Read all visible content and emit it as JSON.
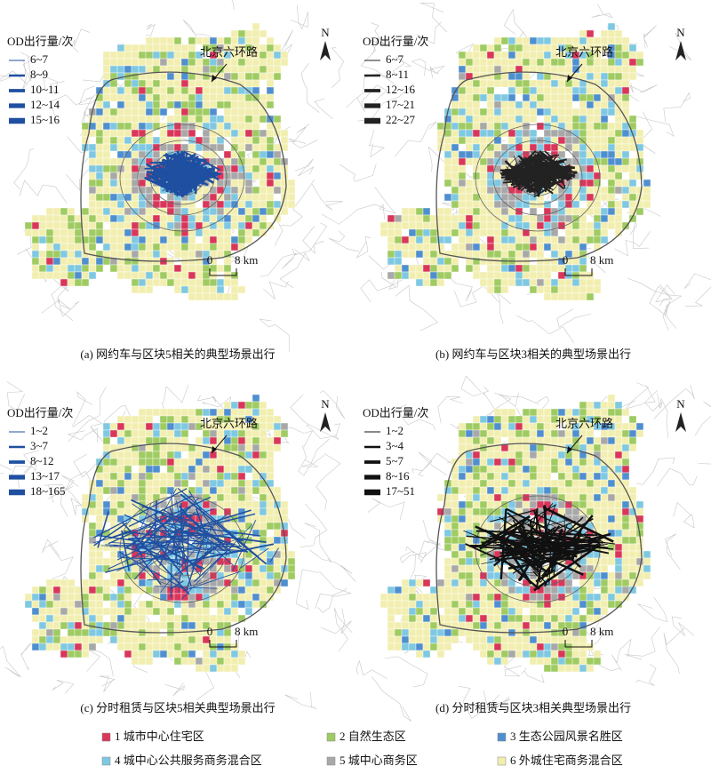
{
  "panels": [
    {
      "caption": "(a) 网约车与区块5相关的典型场景出行",
      "legend_title": "OD出行量/次",
      "legend_items": [
        "6~7",
        "8~9",
        "10~11",
        "12~14",
        "15~16"
      ],
      "line_color": "#1f4fa0",
      "ring_label": "北京六环路",
      "scale_labels": [
        "0",
        "8 km"
      ],
      "north": "N"
    },
    {
      "caption": "(b) 网约车与区块3相关的典型场景出行",
      "legend_title": "OD出行量/次",
      "legend_items": [
        "6~7",
        "8~11",
        "12~16",
        "17~21",
        "22~27"
      ],
      "line_color": "#222222",
      "ring_label": "北京六环路",
      "scale_labels": [
        "0",
        "8 km"
      ],
      "north": "N"
    },
    {
      "caption": "(c) 分时租赁与区块5相关典型场景出行",
      "legend_title": "OD出行量/次",
      "legend_items": [
        "1~2",
        "3~7",
        "8~12",
        "13~17",
        "18~165"
      ],
      "line_color": "#1f4fa0",
      "ring_label": "北京六环路",
      "scale_labels": [
        "0",
        "8 km"
      ],
      "north": "N"
    },
    {
      "caption": "(d) 分时租赁与区块3相关典型场景出行",
      "legend_title": "OD出行量/次",
      "legend_items": [
        "1~2",
        "3~4",
        "5~7",
        "8~16",
        "17~51"
      ],
      "line_color": "#111111",
      "ring_label": "北京六环路",
      "scale_labels": [
        "0",
        "8 km"
      ],
      "north": "N"
    }
  ],
  "zone_legend": [
    {
      "label": "1 城市中心住宅区",
      "color": "#d9365a"
    },
    {
      "label": "2 自然生态区",
      "color": "#9fcb62"
    },
    {
      "label": "3 生态公园风景名胜区",
      "color": "#4f8fcf"
    },
    {
      "label": "4 城中心公共服务商务混合区",
      "color": "#7fc8e2"
    },
    {
      "label": "5 城中心商务区",
      "color": "#a8a8a8"
    },
    {
      "label": "6 外城住宅商务混合区",
      "color": "#f2eeb0"
    }
  ]
}
